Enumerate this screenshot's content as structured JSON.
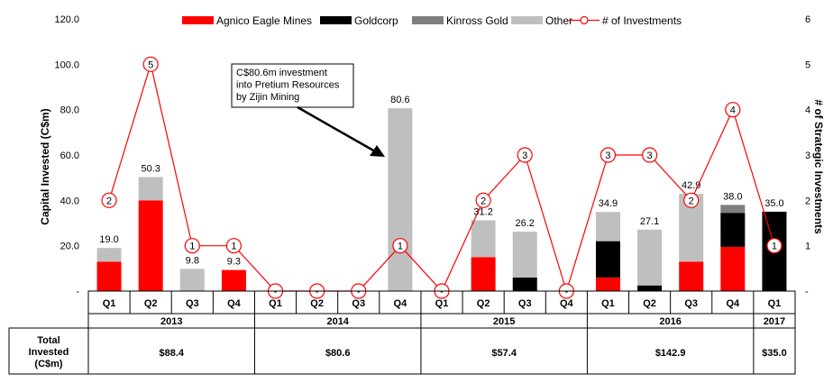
{
  "chart_data": {
    "type": "bar",
    "stacked": true,
    "categories": [
      "Q1",
      "Q2",
      "Q3",
      "Q4",
      "Q1",
      "Q2",
      "Q3",
      "Q4",
      "Q1",
      "Q2",
      "Q3",
      "Q4",
      "Q1",
      "Q2",
      "Q3",
      "Q4",
      "Q1"
    ],
    "year_groups": [
      {
        "label": "2013",
        "start": 0,
        "count": 4
      },
      {
        "label": "2014",
        "start": 4,
        "count": 4
      },
      {
        "label": "2015",
        "start": 8,
        "count": 4
      },
      {
        "label": "2016",
        "start": 12,
        "count": 4
      },
      {
        "label": "2017",
        "start": 16,
        "count": 1
      }
    ],
    "series": [
      {
        "name": "Agnico Eagle Mines",
        "color": "#ff0000",
        "values": [
          13.0,
          40.0,
          0,
          9.3,
          0,
          0,
          0,
          0,
          0,
          15.0,
          0,
          0,
          6.0,
          0,
          13.0,
          19.5,
          0
        ]
      },
      {
        "name": "Goldcorp",
        "color": "#000000",
        "values": [
          0,
          0,
          0,
          0,
          0,
          0,
          0,
          0,
          0,
          0,
          6.0,
          0,
          16.0,
          2.5,
          0,
          15.0,
          35.0
        ]
      },
      {
        "name": "Kinross Gold",
        "color": "#7f7f7f",
        "values": [
          0,
          0,
          0,
          0,
          0,
          0,
          0,
          0,
          0,
          0,
          0,
          0,
          0,
          0,
          0,
          3.5,
          0
        ]
      },
      {
        "name": "Other",
        "color": "#bfbfbf",
        "values": [
          6.0,
          10.3,
          9.8,
          0,
          0,
          0,
          0,
          80.6,
          0,
          16.2,
          20.2,
          0,
          12.9,
          24.6,
          29.9,
          0,
          0
        ]
      }
    ],
    "bar_labels": [
      "19.0",
      "50.3",
      "9.8",
      "9.3",
      "-",
      "-",
      "-",
      "80.6",
      "",
      "31.2",
      "26.2",
      "",
      "34.9",
      "27.1",
      "42.9",
      "38.0",
      "35.0"
    ],
    "line_series": {
      "name": "# of Investments",
      "color": "#ff0000",
      "values": [
        2,
        5,
        1,
        1,
        0,
        0,
        0,
        1,
        0,
        2,
        3,
        0,
        3,
        3,
        2,
        4,
        1
      ],
      "labels": [
        "2",
        "5",
        "1",
        "1",
        "-",
        "-",
        "-",
        "1",
        "-",
        "2",
        "3",
        "-",
        "3",
        "3",
        "2",
        "4",
        "1"
      ]
    },
    "y_left": {
      "label": "Capital Invested (C$m)",
      "min": 0,
      "max": 120,
      "ticks": [
        "-",
        "20.0",
        "40.0",
        "60.0",
        "80.0",
        "100.0",
        "120.0"
      ]
    },
    "y_right": {
      "label": "# of Strategic Investments",
      "min": 0,
      "max": 6,
      "ticks": [
        "-",
        "1",
        "2",
        "3",
        "4",
        "5",
        "6"
      ]
    },
    "annotation": {
      "lines": [
        "C$80.6m investment",
        "into Pretium Resources",
        "by Zijin Mining"
      ]
    },
    "totals": {
      "label_lines": [
        "Total",
        "Invested",
        "(C$m)"
      ],
      "values": [
        "$88.4",
        "$80.6",
        "$57.4",
        "$142.9",
        "$35.0"
      ]
    },
    "legend_position": "top",
    "grid": false
  }
}
